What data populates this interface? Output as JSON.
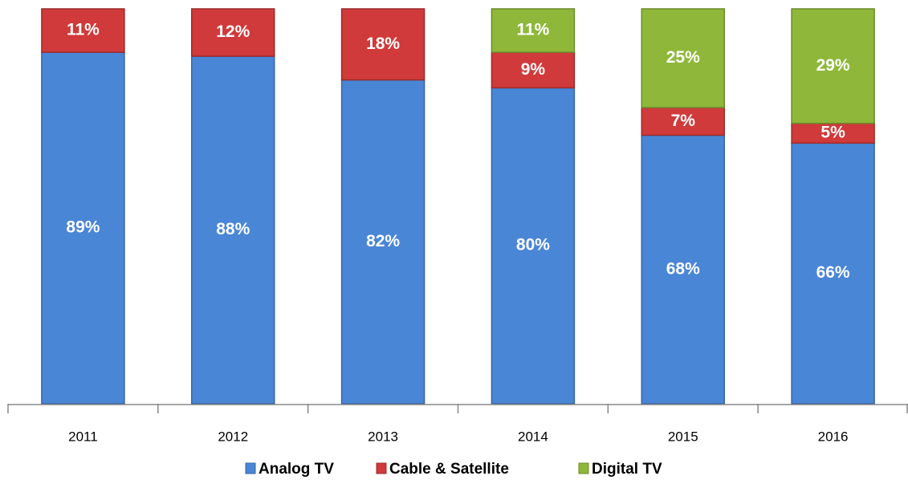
{
  "chart_data": {
    "type": "stacked_bar",
    "categories": [
      "2011",
      "2012",
      "2013",
      "2014",
      "2015",
      "2016"
    ],
    "series": [
      {
        "name": "Analog TV",
        "color": "#4a86d6",
        "values": [
          89,
          88,
          82,
          80,
          68,
          66
        ],
        "value_labels": [
          "89%",
          "88%",
          "82%",
          "80%",
          "68%",
          "66%"
        ]
      },
      {
        "name": "Cable & Satellite",
        "color": "#d03a3a",
        "values": [
          11,
          12,
          18,
          9,
          7,
          5
        ],
        "value_labels": [
          "11%",
          "12%",
          "18%",
          "9%",
          "7%",
          "5%"
        ]
      },
      {
        "name": "Digital TV",
        "color": "#8fb83a",
        "values": [
          null,
          null,
          null,
          11,
          25,
          29
        ],
        "value_labels": [
          null,
          null,
          null,
          "11%",
          "25%",
          "29%"
        ]
      }
    ],
    "ylim": [
      0,
      100
    ],
    "legend": "bottom"
  }
}
